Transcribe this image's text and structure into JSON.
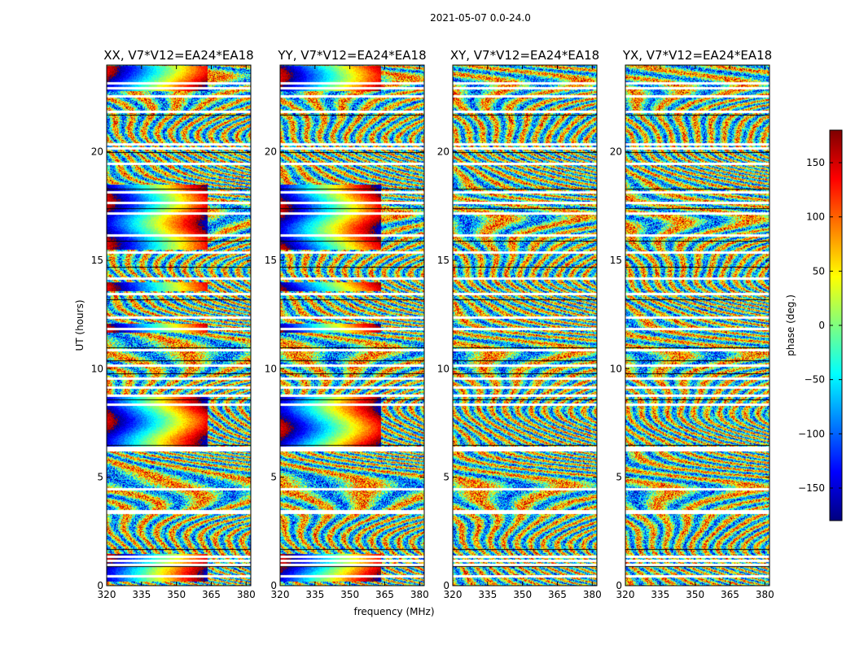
{
  "figure": {
    "suptitle": "2021-05-07 0.0-24.0"
  },
  "chart_data": {
    "type": "heatmap",
    "panels": [
      {
        "title": "XX, V7*V12=EA24*EA18",
        "pol": "XX"
      },
      {
        "title": "YY, V7*V12=EA24*EA18",
        "pol": "YY"
      },
      {
        "title": "XY, V7*V12=EA24*EA18",
        "pol": "XY"
      },
      {
        "title": "YX, V7*V12=EA24*EA18",
        "pol": "YX"
      }
    ],
    "xlabel": "frequency (MHz)",
    "ylabel": "UT (hours)",
    "xlim": [
      320,
      382
    ],
    "ylim": [
      0,
      24
    ],
    "xticks": [
      320,
      335,
      350,
      365,
      380
    ],
    "yticks": [
      0,
      5,
      10,
      15,
      20
    ],
    "colorbar": {
      "label": "phase (deg.)",
      "range": [
        -180,
        180
      ],
      "ticks": [
        -150,
        -100,
        -50,
        0,
        50,
        100,
        150
      ],
      "tick_labels": [
        "−150",
        "−100",
        "−50",
        "0",
        "50",
        "100",
        "150"
      ],
      "colormap": "jet",
      "colors": [
        "#00007f",
        "#0000ff",
        "#007fff",
        "#00ffff",
        "#7fff7f",
        "#ffff00",
        "#ff7f00",
        "#ff0000",
        "#7f0000"
      ]
    },
    "flagged_ut_hours": [
      0.5,
      1.0,
      1.2,
      1.4,
      3.4,
      3.5,
      4.5,
      6.3,
      6.4,
      8.4,
      8.8,
      9.2,
      9.6,
      10.2,
      10.9,
      11.9,
      12.4,
      13.5,
      14.2,
      15.4,
      16.2,
      17.2,
      17.7,
      18.2,
      19.5,
      20.2,
      20.4,
      21.9,
      22.6,
      23.0,
      23.2
    ]
  }
}
